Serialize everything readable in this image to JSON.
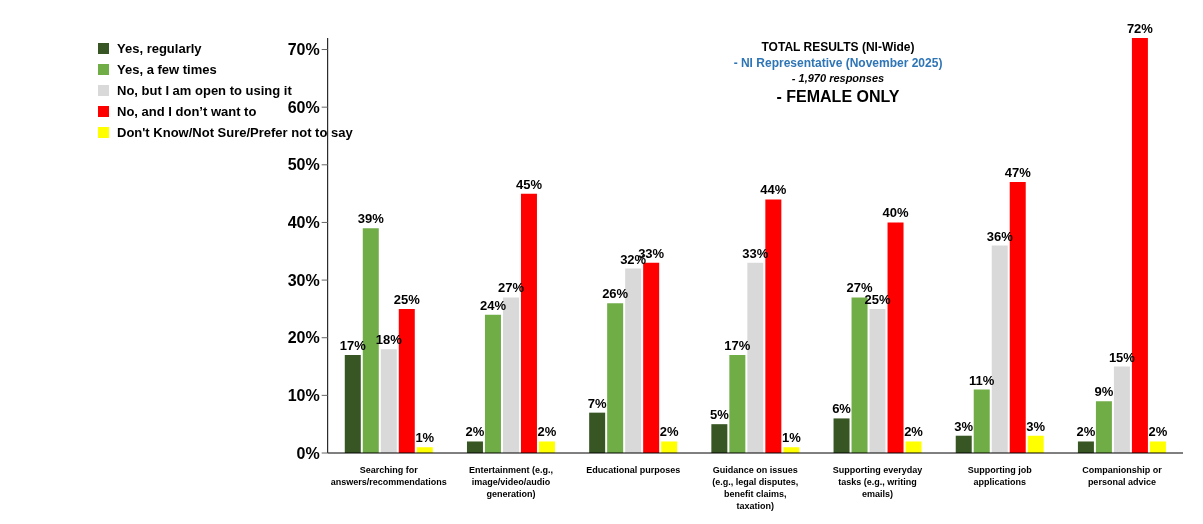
{
  "chart_data": {
    "type": "bar",
    "categories": [
      "Searching for answers/recommendations",
      "Entertainment (e.g., image/video/audio generation)",
      "Educational purposes",
      "Guidance on issues (e.g., legal disputes, benefit claims, taxation)",
      "Supporting everyday tasks (e.g., writing emails)",
      "Supporting job applications",
      "Companionship or personal advice"
    ],
    "series": [
      {
        "name": "Yes, regularly",
        "color": "#375623",
        "values": [
          17,
          2,
          7,
          5,
          6,
          3,
          2
        ],
        "value_labels": [
          "17%",
          "2%",
          "7%",
          "5%",
          "6%",
          "3%",
          "2%"
        ]
      },
      {
        "name": "Yes, a few times",
        "color": "#70ad47",
        "values": [
          39,
          24,
          26,
          17,
          27,
          11,
          9
        ],
        "value_labels": [
          "39%",
          "24%",
          "26%",
          "17%",
          "27%",
          "11%",
          "9%"
        ]
      },
      {
        "name": "No, but I am open to using it",
        "color": "#d9d9d9",
        "values": [
          18,
          27,
          32,
          33,
          25,
          36,
          15
        ],
        "value_labels": [
          "18%",
          "27%",
          "32%",
          "33%",
          "25%",
          "36%",
          "15%"
        ]
      },
      {
        "name": "No, and I don’t want to",
        "color": "#ff0000",
        "values": [
          25,
          45,
          33,
          44,
          40,
          47,
          72
        ],
        "value_labels": [
          "25%",
          "45%",
          "33%",
          "44%",
          "40%",
          "47%",
          "72%"
        ]
      },
      {
        "name": "Don't Know/Not Sure/Prefer not to say",
        "color": "#ffff00",
        "values": [
          1,
          2,
          2,
          1,
          2,
          3,
          2
        ],
        "value_labels": [
          "1%",
          "2%",
          "2%",
          "1%",
          "2%",
          "3%",
          "2%"
        ]
      }
    ],
    "ylim": [
      0,
      72
    ],
    "yticks": [
      {
        "value": 0,
        "label": "0%"
      },
      {
        "value": 10,
        "label": "10%"
      },
      {
        "value": 20,
        "label": "20%"
      },
      {
        "value": 30,
        "label": "30%"
      },
      {
        "value": 40,
        "label": "40%"
      },
      {
        "value": 50,
        "label": "50%"
      },
      {
        "value": 60,
        "label": "60%"
      },
      {
        "value": 70,
        "label": "70%"
      }
    ],
    "grid": false,
    "legend": "top left",
    "annotations": [
      "TOTAL RESULTS (NI-Wide)",
      "- NI Representative (November 2025)",
      "- 1,970 responses",
      "- FEMALE ONLY"
    ]
  }
}
